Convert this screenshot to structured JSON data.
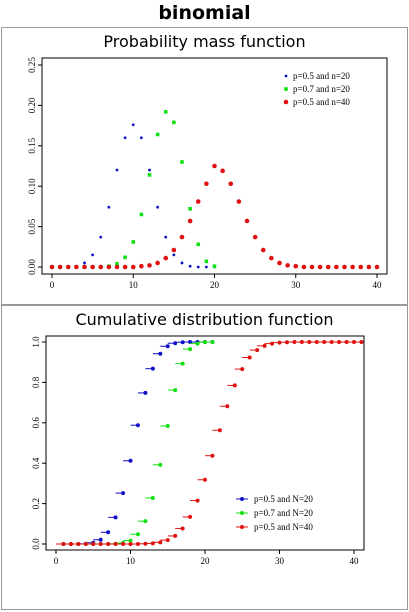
{
  "page": {
    "title": "binomial"
  },
  "colors": {
    "series1": "#1010c8",
    "series2": "#10e010",
    "series3": "#e01010",
    "axis": "#000000",
    "frame": "#9a9a9a"
  },
  "chart_data": [
    {
      "type": "scatter",
      "title": "Probability mass function",
      "xlabel": "",
      "ylabel": "",
      "xlim": [
        0,
        40
      ],
      "ylim": [
        0,
        0.25
      ],
      "xticks": [
        "0",
        "10",
        "20",
        "30",
        "40"
      ],
      "yticks": [
        "0.00",
        "0.05",
        "0.10",
        "0.15",
        "0.20",
        "0.25"
      ],
      "grid": false,
      "legend_position": "top-right",
      "series": [
        {
          "name": "p=0.5 and n=20",
          "color": "#1010c8",
          "marker": "dot",
          "x": [
            0,
            1,
            2,
            3,
            4,
            5,
            6,
            7,
            8,
            9,
            10,
            11,
            12,
            13,
            14,
            15,
            16,
            17,
            18,
            19,
            20
          ],
          "y": [
            0,
            0,
            0,
            0.001,
            0.005,
            0.015,
            0.037,
            0.074,
            0.12,
            0.16,
            0.176,
            0.16,
            0.12,
            0.074,
            0.037,
            0.015,
            0.005,
            0.001,
            0,
            0,
            0
          ]
        },
        {
          "name": "p=0.7 and n=20",
          "color": "#10e010",
          "marker": "square",
          "x": [
            0,
            1,
            2,
            3,
            4,
            5,
            6,
            7,
            8,
            9,
            10,
            11,
            12,
            13,
            14,
            15,
            16,
            17,
            18,
            19,
            20
          ],
          "y": [
            0,
            0,
            0,
            0,
            0,
            0,
            0,
            0.001,
            0.004,
            0.012,
            0.031,
            0.065,
            0.114,
            0.164,
            0.192,
            0.179,
            0.13,
            0.072,
            0.028,
            0.007,
            0.001
          ]
        },
        {
          "name": "p=0.5 and n=40",
          "color": "#e01010",
          "marker": "circle",
          "x": [
            0,
            1,
            2,
            3,
            4,
            5,
            6,
            7,
            8,
            9,
            10,
            11,
            12,
            13,
            14,
            15,
            16,
            17,
            18,
            19,
            20,
            21,
            22,
            23,
            24,
            25,
            26,
            27,
            28,
            29,
            30,
            31,
            32,
            33,
            34,
            35,
            36,
            37,
            38,
            39,
            40
          ],
          "y": [
            0,
            0,
            0,
            0,
            0,
            0,
            0,
            0,
            0,
            0,
            0,
            0.001,
            0.002,
            0.005,
            0.011,
            0.021,
            0.037,
            0.057,
            0.081,
            0.103,
            0.125,
            0.119,
            0.103,
            0.081,
            0.057,
            0.037,
            0.021,
            0.011,
            0.005,
            0.002,
            0.001,
            0,
            0,
            0,
            0,
            0,
            0,
            0,
            0,
            0,
            0
          ]
        }
      ]
    },
    {
      "type": "scatter",
      "title": "Cumulative distribution function",
      "xlabel": "",
      "ylabel": "",
      "xlim": [
        0,
        40
      ],
      "ylim": [
        0,
        1
      ],
      "xticks": [
        "0",
        "10",
        "20",
        "30",
        "40"
      ],
      "yticks": [
        "0.0",
        "0.2",
        "0.4",
        "0.6",
        "0.8",
        "1.0"
      ],
      "grid": false,
      "legend_position": "bottom-right",
      "series": [
        {
          "name": "p=0.5 and N=20",
          "color": "#1010c8",
          "marker": "step",
          "x": [
            0,
            1,
            2,
            3,
            4,
            5,
            6,
            7,
            8,
            9,
            10,
            11,
            12,
            13,
            14,
            15,
            16,
            17,
            18,
            19,
            20
          ],
          "y": [
            0,
            0,
            0,
            0.001,
            0.006,
            0.021,
            0.058,
            0.132,
            0.252,
            0.412,
            0.588,
            0.748,
            0.868,
            0.942,
            0.979,
            0.994,
            0.999,
            1,
            1,
            1,
            1
          ]
        },
        {
          "name": "p=0.7 and N=20",
          "color": "#10e010",
          "marker": "step",
          "x": [
            0,
            1,
            2,
            3,
            4,
            5,
            6,
            7,
            8,
            9,
            10,
            11,
            12,
            13,
            14,
            15,
            16,
            17,
            18,
            19,
            20
          ],
          "y": [
            0,
            0,
            0,
            0,
            0,
            0,
            0,
            0.001,
            0.005,
            0.017,
            0.048,
            0.113,
            0.228,
            0.392,
            0.584,
            0.762,
            0.893,
            0.965,
            0.992,
            0.999,
            1
          ]
        },
        {
          "name": "p=0.5 and N=40",
          "color": "#e01010",
          "marker": "step",
          "x": [
            0,
            1,
            2,
            3,
            4,
            5,
            6,
            7,
            8,
            9,
            10,
            11,
            12,
            13,
            14,
            15,
            16,
            17,
            18,
            19,
            20,
            21,
            22,
            23,
            24,
            25,
            26,
            27,
            28,
            29,
            30,
            31,
            32,
            33,
            34,
            35,
            36,
            37,
            38,
            39,
            40
          ],
          "y": [
            0,
            0,
            0,
            0,
            0,
            0,
            0,
            0,
            0,
            0,
            0,
            0.001,
            0.003,
            0.008,
            0.019,
            0.04,
            0.077,
            0.134,
            0.215,
            0.318,
            0.437,
            0.563,
            0.682,
            0.785,
            0.866,
            0.923,
            0.96,
            0.981,
            0.992,
            0.997,
            0.999,
            1,
            1,
            1,
            1,
            1,
            1,
            1,
            1,
            1,
            1
          ]
        }
      ]
    }
  ]
}
